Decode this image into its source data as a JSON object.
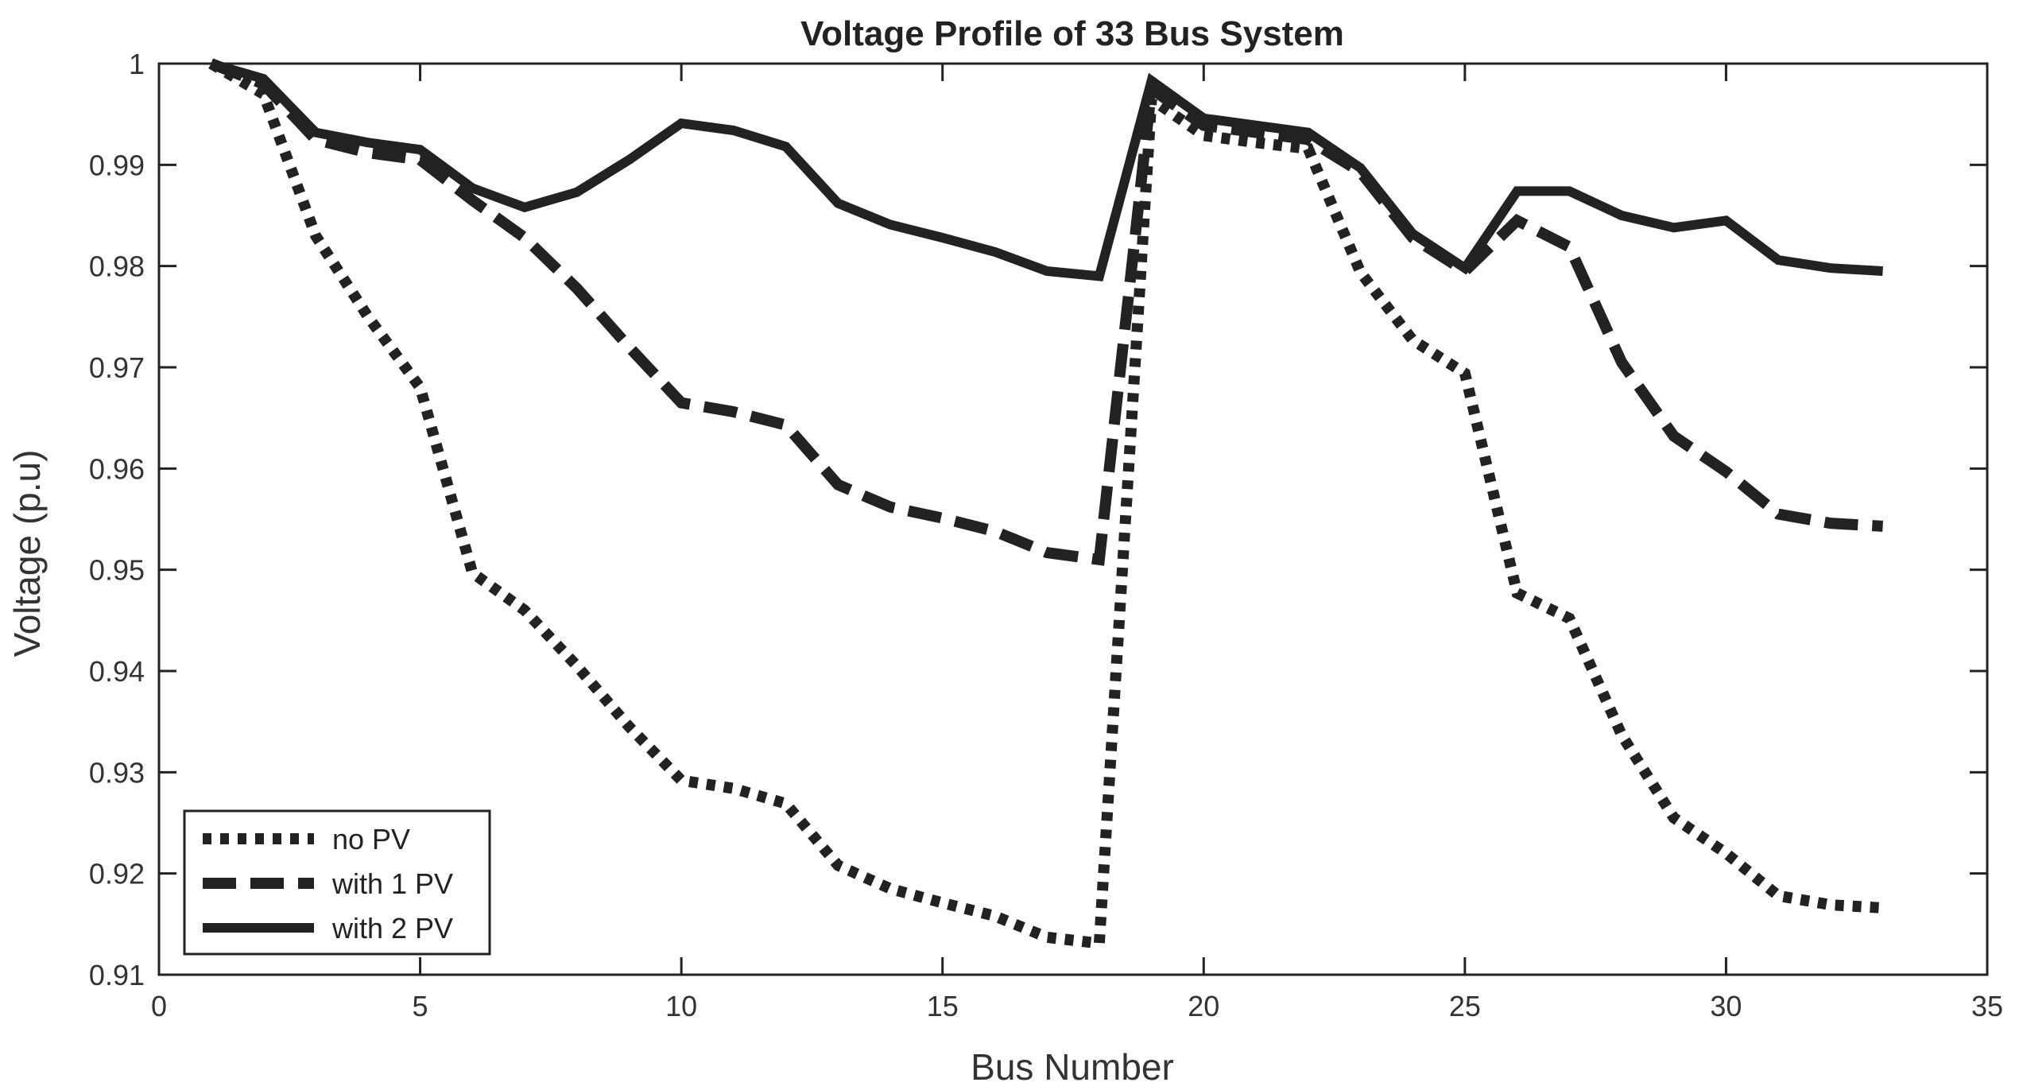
{
  "chart_data": {
    "type": "line",
    "title": "Voltage Profile of 33 Bus System",
    "xlabel": "Bus Number",
    "ylabel": "Voltage (p.u)",
    "xlim": [
      0,
      35
    ],
    "ylim": [
      0.91,
      1.0
    ],
    "xticks": [
      0,
      5,
      10,
      15,
      20,
      25,
      30,
      35
    ],
    "yticks": [
      0.91,
      0.92,
      0.93,
      0.94,
      0.95,
      0.96,
      0.97,
      0.98,
      0.99,
      1.0
    ],
    "xtick_labels": [
      "0",
      "5",
      "10",
      "15",
      "20",
      "25",
      "30",
      "35"
    ],
    "ytick_labels": [
      "0.91",
      "0.92",
      "0.93",
      "0.94",
      "0.95",
      "0.96",
      "0.97",
      "0.98",
      "0.99",
      "1"
    ],
    "grid": false,
    "legend_position": "bottom-left",
    "x": [
      1,
      2,
      3,
      4,
      5,
      6,
      7,
      8,
      9,
      10,
      11,
      12,
      13,
      14,
      15,
      16,
      17,
      18,
      19,
      20,
      21,
      22,
      23,
      24,
      25,
      26,
      27,
      28,
      29,
      30,
      31,
      32,
      33
    ],
    "series": [
      {
        "name": "no PV",
        "style": "dotted",
        "color": "#222222",
        "values": [
          1.0,
          0.997,
          0.983,
          0.975,
          0.968,
          0.9497,
          0.946,
          0.9405,
          0.9345,
          0.9292,
          0.9284,
          0.9269,
          0.9208,
          0.9185,
          0.9171,
          0.9158,
          0.9137,
          0.9131,
          0.9965,
          0.9929,
          0.9922,
          0.9916,
          0.9794,
          0.9727,
          0.9694,
          0.9477,
          0.9452,
          0.9337,
          0.9255,
          0.922,
          0.9178,
          0.9169,
          0.9166
        ]
      },
      {
        "name": "with 1 PV",
        "style": "dashed",
        "color": "#222222",
        "values": [
          1.0,
          0.998,
          0.9925,
          0.9912,
          0.9905,
          0.9865,
          0.9828,
          0.9778,
          0.972,
          0.9665,
          0.9656,
          0.9643,
          0.9584,
          0.9562,
          0.9551,
          0.9538,
          0.9517,
          0.951,
          0.9975,
          0.9939,
          0.9932,
          0.9925,
          0.9893,
          0.9828,
          0.9795,
          0.9845,
          0.9819,
          0.9705,
          0.9632,
          0.9597,
          0.9555,
          0.9546,
          0.9543
        ]
      },
      {
        "name": "with 2 PV",
        "style": "solid",
        "color": "#222222",
        "values": [
          1.0,
          0.9985,
          0.9932,
          0.9922,
          0.9915,
          0.9877,
          0.9858,
          0.9873,
          0.9905,
          0.9941,
          0.9934,
          0.9918,
          0.9862,
          0.9841,
          0.9828,
          0.9814,
          0.9795,
          0.979,
          0.9983,
          0.9946,
          0.9939,
          0.9932,
          0.9897,
          0.9832,
          0.9798,
          0.9874,
          0.9874,
          0.985,
          0.9838,
          0.9845,
          0.9806,
          0.9798,
          0.9795
        ]
      }
    ]
  }
}
